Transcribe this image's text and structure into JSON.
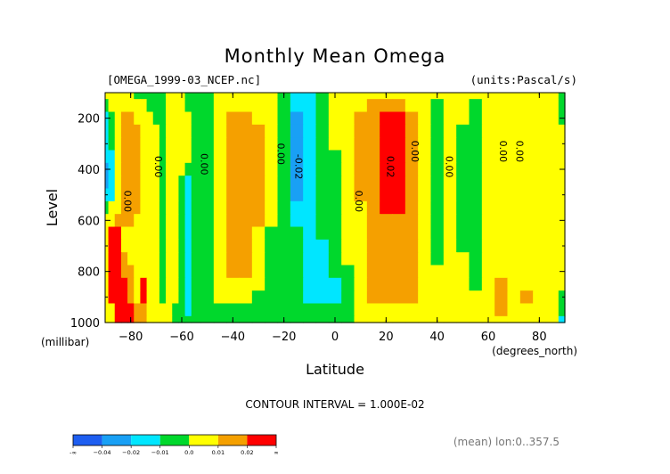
{
  "chart_data": {
    "type": "heatmap",
    "title": "Monthly Mean Omega",
    "file_label": "[OMEGA_1999-03_NCEP.nc]",
    "units_label": "(units:Pascal/s)",
    "xlabel": "Latitude",
    "x_units": "(degrees_north)",
    "ylabel": "Level",
    "y_units": "(millibar)",
    "xlim": [
      -90,
      90
    ],
    "ylim": [
      1000,
      100
    ],
    "x_ticks": [
      -80,
      -60,
      -40,
      -20,
      0,
      20,
      40,
      60,
      80
    ],
    "y_ticks": [
      200,
      400,
      600,
      800,
      1000
    ],
    "contour_interval_text": "CONTOUR INTERVAL = 1.000E-02",
    "mean_note": "(mean) lon:0..357.5",
    "colorbar": {
      "colors": [
        "#1e5ef0",
        "#19a0f5",
        "#00e6ff",
        "#00d82c",
        "#ffff00",
        "#f5a000",
        "#ff0000"
      ],
      "tick_labels": [
        "-∞",
        "−0.04",
        "−0.02",
        "−0.01",
        "0.0",
        "0.01",
        "0.02",
        "∞"
      ]
    },
    "contour_labels": [
      {
        "text": "0.00",
        "lat": -81.5,
        "lev": 525
      },
      {
        "text": "0.00",
        "lat": -69.5,
        "lev": 390
      },
      {
        "text": "0.00",
        "lat": -51.5,
        "lev": 380
      },
      {
        "text": "0.00",
        "lat": -21.5,
        "lev": 340
      },
      {
        "text": "-0.02",
        "lat": -14.5,
        "lev": 390
      },
      {
        "text": "0.00",
        "lat": 9,
        "lev": 525
      },
      {
        "text": "0.02",
        "lat": 21.5,
        "lev": 390
      },
      {
        "text": "0.00",
        "lat": 31,
        "lev": 330
      },
      {
        "text": "0.00",
        "lat": 44.5,
        "lev": 390
      },
      {
        "text": "0.00",
        "lat": 65.5,
        "lev": 330
      },
      {
        "text": "0.00",
        "lat": 72,
        "lev": 330
      }
    ],
    "levels": [
      100,
      150,
      200,
      250,
      300,
      350,
      400,
      450,
      500,
      550,
      600,
      650,
      700,
      750,
      800,
      850,
      900,
      950,
      1000
    ],
    "latitudes": [
      -90,
      -87.5,
      -85,
      -82.5,
      -80,
      -77.5,
      -75,
      -72.5,
      -70,
      -67.5,
      -65,
      -62.5,
      -60,
      -57.5,
      -55,
      -50,
      -45,
      -40,
      -35,
      -30,
      -25,
      -20,
      -15,
      -10,
      -5,
      0,
      5,
      10,
      15,
      20,
      25,
      30,
      35,
      40,
      45,
      50,
      55,
      60,
      65,
      70,
      75,
      80,
      85,
      90
    ],
    "values_by_level": [
      [
        0.0,
        0.0,
        0.005,
        0.005,
        0.005,
        -0.005,
        -0.005,
        -0.005,
        -0.005,
        -0.005,
        0.005,
        0.0,
        0.0,
        -0.005,
        -0.005,
        -0.005,
        0.005,
        0.005,
        0.005,
        0.005,
        0.0,
        -0.005,
        -0.015,
        -0.015,
        -0.005,
        0.005,
        0.005,
        0.005,
        0.005,
        0.005,
        0.005,
        0.005,
        0.0,
        0.005,
        0.005,
        0.005,
        0.0,
        0.005,
        0.005,
        0.005,
        0.0,
        0.005,
        0.005,
        -0.005
      ],
      [
        -0.005,
        0.0,
        0.005,
        0.005,
        0.005,
        0.005,
        0.005,
        -0.005,
        -0.005,
        -0.005,
        0.005,
        0.005,
        0.0,
        -0.005,
        -0.005,
        -0.005,
        0.005,
        0.005,
        0.005,
        0.005,
        0.0,
        -0.005,
        -0.015,
        -0.015,
        -0.005,
        0.005,
        0.005,
        0.005,
        0.015,
        0.015,
        0.015,
        0.005,
        0.0,
        -0.005,
        0.005,
        0.005,
        -0.005,
        0.005,
        0.005,
        0.005,
        0.0,
        0.005,
        0.005,
        -0.005
      ],
      [
        -0.015,
        -0.005,
        0.005,
        0.015,
        0.015,
        0.005,
        0.005,
        0.005,
        -0.005,
        -0.005,
        0.005,
        0.005,
        0.005,
        0.0,
        -0.005,
        -0.005,
        0.005,
        0.015,
        0.015,
        0.005,
        0.0,
        -0.005,
        -0.025,
        -0.015,
        -0.005,
        0.005,
        0.005,
        0.015,
        0.015,
        0.025,
        0.025,
        0.015,
        0.005,
        -0.005,
        0.005,
        0.005,
        -0.005,
        0.005,
        0.005,
        0.005,
        0.0,
        0.005,
        0.005,
        -0.005
      ],
      [
        -0.015,
        -0.005,
        0.005,
        0.015,
        0.015,
        0.015,
        0.005,
        0.005,
        0.0,
        -0.005,
        0.005,
        0.005,
        0.005,
        0.0,
        -0.005,
        -0.005,
        0.005,
        0.015,
        0.015,
        0.015,
        0.0,
        -0.005,
        -0.025,
        -0.015,
        -0.005,
        0.005,
        0.005,
        0.015,
        0.015,
        0.025,
        0.025,
        0.015,
        0.005,
        -0.005,
        0.005,
        -0.005,
        -0.005,
        0.005,
        0.005,
        0.005,
        0.0,
        0.005,
        0.005,
        0.0
      ],
      [
        -0.015,
        -0.005,
        0.005,
        0.015,
        0.015,
        0.015,
        0.005,
        0.005,
        0.0,
        -0.005,
        0.005,
        0.005,
        0.005,
        0.0,
        -0.005,
        -0.005,
        0.005,
        0.015,
        0.015,
        0.015,
        0.0,
        -0.005,
        -0.025,
        -0.015,
        -0.005,
        0.005,
        0.005,
        0.015,
        0.015,
        0.025,
        0.025,
        0.015,
        0.005,
        -0.005,
        0.005,
        -0.005,
        -0.005,
        0.005,
        0.005,
        0.005,
        0.0,
        0.005,
        0.005,
        0.005
      ],
      [
        -0.015,
        -0.015,
        0.005,
        0.015,
        0.015,
        0.015,
        0.005,
        0.005,
        0.0,
        -0.005,
        0.005,
        0.005,
        0.005,
        0.0,
        -0.005,
        -0.005,
        0.005,
        0.015,
        0.015,
        0.015,
        0.0,
        -0.005,
        -0.025,
        -0.015,
        -0.005,
        -0.005,
        0.005,
        0.015,
        0.015,
        0.025,
        0.025,
        0.015,
        0.005,
        -0.005,
        0.005,
        -0.005,
        -0.005,
        0.005,
        0.005,
        0.005,
        0.005,
        0.005,
        0.005,
        0.005
      ],
      [
        -0.025,
        -0.015,
        0.005,
        0.015,
        0.015,
        0.015,
        0.005,
        0.005,
        0.0,
        -0.005,
        0.005,
        0.005,
        0.0,
        -0.005,
        -0.005,
        -0.005,
        0.005,
        0.015,
        0.015,
        0.015,
        0.0,
        -0.005,
        -0.025,
        -0.015,
        -0.005,
        -0.005,
        0.005,
        0.015,
        0.015,
        0.025,
        0.025,
        0.015,
        0.005,
        -0.005,
        0.005,
        -0.005,
        -0.005,
        0.005,
        0.005,
        0.005,
        0.005,
        0.005,
        0.005,
        0.005
      ],
      [
        -0.025,
        -0.015,
        0.005,
        0.015,
        0.015,
        0.015,
        0.005,
        0.005,
        0.0,
        -0.005,
        0.005,
        0.0,
        -0.005,
        -0.015,
        -0.005,
        -0.005,
        0.005,
        0.015,
        0.015,
        0.015,
        0.0,
        -0.005,
        -0.025,
        -0.015,
        -0.005,
        -0.005,
        0.005,
        0.015,
        0.015,
        0.025,
        0.025,
        0.015,
        0.005,
        -0.005,
        0.005,
        -0.005,
        -0.005,
        0.005,
        0.005,
        0.005,
        0.005,
        0.005,
        0.005,
        0.005
      ],
      [
        -0.015,
        -0.015,
        0.005,
        0.015,
        0.015,
        0.015,
        0.005,
        0.005,
        0.0,
        -0.005,
        0.005,
        0.0,
        -0.005,
        -0.015,
        -0.005,
        -0.005,
        0.005,
        0.015,
        0.015,
        0.015,
        0.0,
        -0.005,
        -0.025,
        -0.015,
        -0.005,
        -0.005,
        0.005,
        0.015,
        0.015,
        0.025,
        0.025,
        0.015,
        0.005,
        -0.005,
        0.005,
        -0.005,
        -0.005,
        0.005,
        0.005,
        0.005,
        0.005,
        0.005,
        0.005,
        0.005
      ],
      [
        -0.005,
        0.005,
        0.005,
        0.015,
        0.015,
        0.015,
        0.005,
        0.005,
        0.0,
        -0.005,
        0.005,
        0.0,
        -0.005,
        -0.015,
        -0.005,
        -0.005,
        0.005,
        0.015,
        0.015,
        0.015,
        0.0,
        -0.005,
        -0.015,
        -0.015,
        -0.005,
        -0.005,
        0.005,
        0.005,
        0.015,
        0.025,
        0.025,
        0.015,
        0.005,
        -0.005,
        0.005,
        -0.005,
        -0.005,
        0.005,
        0.005,
        0.005,
        0.005,
        0.005,
        0.005,
        0.005
      ],
      [
        0.005,
        0.005,
        0.015,
        0.015,
        0.015,
        0.005,
        0.005,
        0.005,
        0.0,
        -0.005,
        0.005,
        0.0,
        -0.005,
        -0.015,
        -0.005,
        -0.005,
        0.005,
        0.015,
        0.015,
        0.015,
        0.0,
        -0.005,
        -0.015,
        -0.015,
        -0.005,
        -0.005,
        0.005,
        0.005,
        0.015,
        0.015,
        0.015,
        0.015,
        0.005,
        -0.005,
        0.005,
        -0.005,
        -0.005,
        0.005,
        0.005,
        0.005,
        0.005,
        0.005,
        0.005,
        0.005
      ],
      [
        0.005,
        0.025,
        0.025,
        0.005,
        0.005,
        0.005,
        0.005,
        0.005,
        0.0,
        -0.005,
        0.005,
        0.0,
        -0.005,
        -0.015,
        -0.005,
        -0.005,
        0.005,
        0.015,
        0.015,
        0.005,
        -0.005,
        -0.005,
        -0.005,
        -0.015,
        -0.005,
        -0.005,
        0.005,
        0.005,
        0.015,
        0.015,
        0.015,
        0.015,
        0.005,
        -0.005,
        0.005,
        -0.005,
        -0.005,
        0.005,
        0.005,
        0.005,
        0.005,
        0.005,
        0.005,
        0.005
      ],
      [
        0.005,
        0.025,
        0.025,
        0.005,
        0.005,
        0.005,
        0.005,
        0.005,
        0.0,
        -0.005,
        0.005,
        0.0,
        -0.005,
        -0.015,
        -0.005,
        -0.005,
        0.005,
        0.015,
        0.015,
        0.005,
        -0.005,
        -0.005,
        -0.005,
        -0.015,
        -0.015,
        -0.005,
        0.005,
        0.005,
        0.015,
        0.015,
        0.015,
        0.015,
        0.005,
        -0.005,
        0.005,
        -0.005,
        -0.005,
        0.005,
        0.005,
        0.005,
        0.005,
        0.005,
        0.005,
        0.005
      ],
      [
        0.005,
        0.025,
        0.025,
        0.015,
        0.005,
        0.005,
        0.005,
        0.005,
        0.0,
        -0.005,
        0.005,
        0.0,
        -0.005,
        -0.015,
        -0.005,
        -0.005,
        0.005,
        0.015,
        0.015,
        0.005,
        -0.005,
        -0.005,
        -0.005,
        -0.015,
        -0.015,
        -0.005,
        0.005,
        0.005,
        0.015,
        0.015,
        0.015,
        0.015,
        0.005,
        -0.005,
        0.005,
        0.005,
        -0.005,
        0.005,
        0.005,
        0.005,
        0.005,
        0.005,
        0.005,
        0.005
      ],
      [
        0.005,
        0.025,
        0.025,
        0.015,
        0.015,
        0.005,
        0.005,
        0.005,
        0.0,
        -0.005,
        0.005,
        0.0,
        -0.005,
        -0.015,
        -0.005,
        -0.005,
        0.005,
        0.015,
        0.015,
        0.005,
        -0.005,
        -0.005,
        -0.005,
        -0.015,
        -0.015,
        -0.005,
        -0.005,
        0.005,
        0.015,
        0.015,
        0.015,
        0.015,
        0.005,
        0.005,
        0.005,
        0.005,
        -0.005,
        0.005,
        0.005,
        0.005,
        0.005,
        0.005,
        0.005,
        0.005
      ],
      [
        0.005,
        0.025,
        0.025,
        0.025,
        0.015,
        0.005,
        0.025,
        0.005,
        0.005,
        -0.005,
        0.005,
        0.0,
        -0.005,
        -0.015,
        -0.005,
        -0.005,
        0.005,
        0.005,
        0.005,
        0.005,
        -0.005,
        -0.005,
        -0.005,
        -0.015,
        -0.015,
        -0.015,
        -0.005,
        0.005,
        0.015,
        0.015,
        0.015,
        0.015,
        0.005,
        0.005,
        0.005,
        0.005,
        -0.005,
        0.005,
        0.015,
        0.005,
        0.005,
        0.005,
        0.005,
        0.005
      ],
      [
        0.005,
        0.025,
        0.025,
        0.025,
        0.015,
        0.005,
        0.025,
        0.005,
        0.005,
        -0.005,
        0.005,
        0.0,
        -0.005,
        -0.015,
        -0.005,
        -0.005,
        0.005,
        0.005,
        0.005,
        -0.005,
        -0.005,
        -0.005,
        -0.005,
        -0.015,
        -0.015,
        -0.015,
        -0.005,
        0.005,
        0.015,
        0.015,
        0.015,
        0.015,
        0.005,
        0.005,
        0.005,
        0.005,
        0.005,
        0.005,
        0.015,
        0.005,
        0.015,
        0.005,
        0.005,
        -0.005
      ],
      [
        0.005,
        0.005,
        0.025,
        0.025,
        0.025,
        0.015,
        0.015,
        0.005,
        0.005,
        0.005,
        0.005,
        -0.005,
        -0.005,
        -0.015,
        -0.005,
        -0.005,
        -0.005,
        -0.005,
        -0.005,
        -0.005,
        -0.005,
        -0.005,
        -0.005,
        -0.005,
        -0.005,
        -0.005,
        -0.005,
        0.005,
        0.005,
        0.005,
        0.005,
        0.005,
        0.005,
        0.005,
        0.005,
        0.005,
        0.005,
        0.005,
        0.015,
        0.005,
        0.005,
        0.005,
        0.005,
        -0.005
      ],
      [
        0.005,
        0.005,
        0.025,
        0.025,
        0.025,
        0.015,
        0.015,
        0.005,
        0.005,
        0.005,
        0.005,
        -0.005,
        -0.005,
        -0.005,
        -0.005,
        -0.005,
        -0.005,
        -0.005,
        -0.005,
        -0.005,
        -0.005,
        -0.005,
        -0.005,
        -0.005,
        -0.005,
        -0.005,
        -0.005,
        0.005,
        0.005,
        0.005,
        0.005,
        0.005,
        0.005,
        0.005,
        0.005,
        0.005,
        0.005,
        0.005,
        0.005,
        0.005,
        0.005,
        0.005,
        0.005,
        -0.015
      ]
    ]
  }
}
